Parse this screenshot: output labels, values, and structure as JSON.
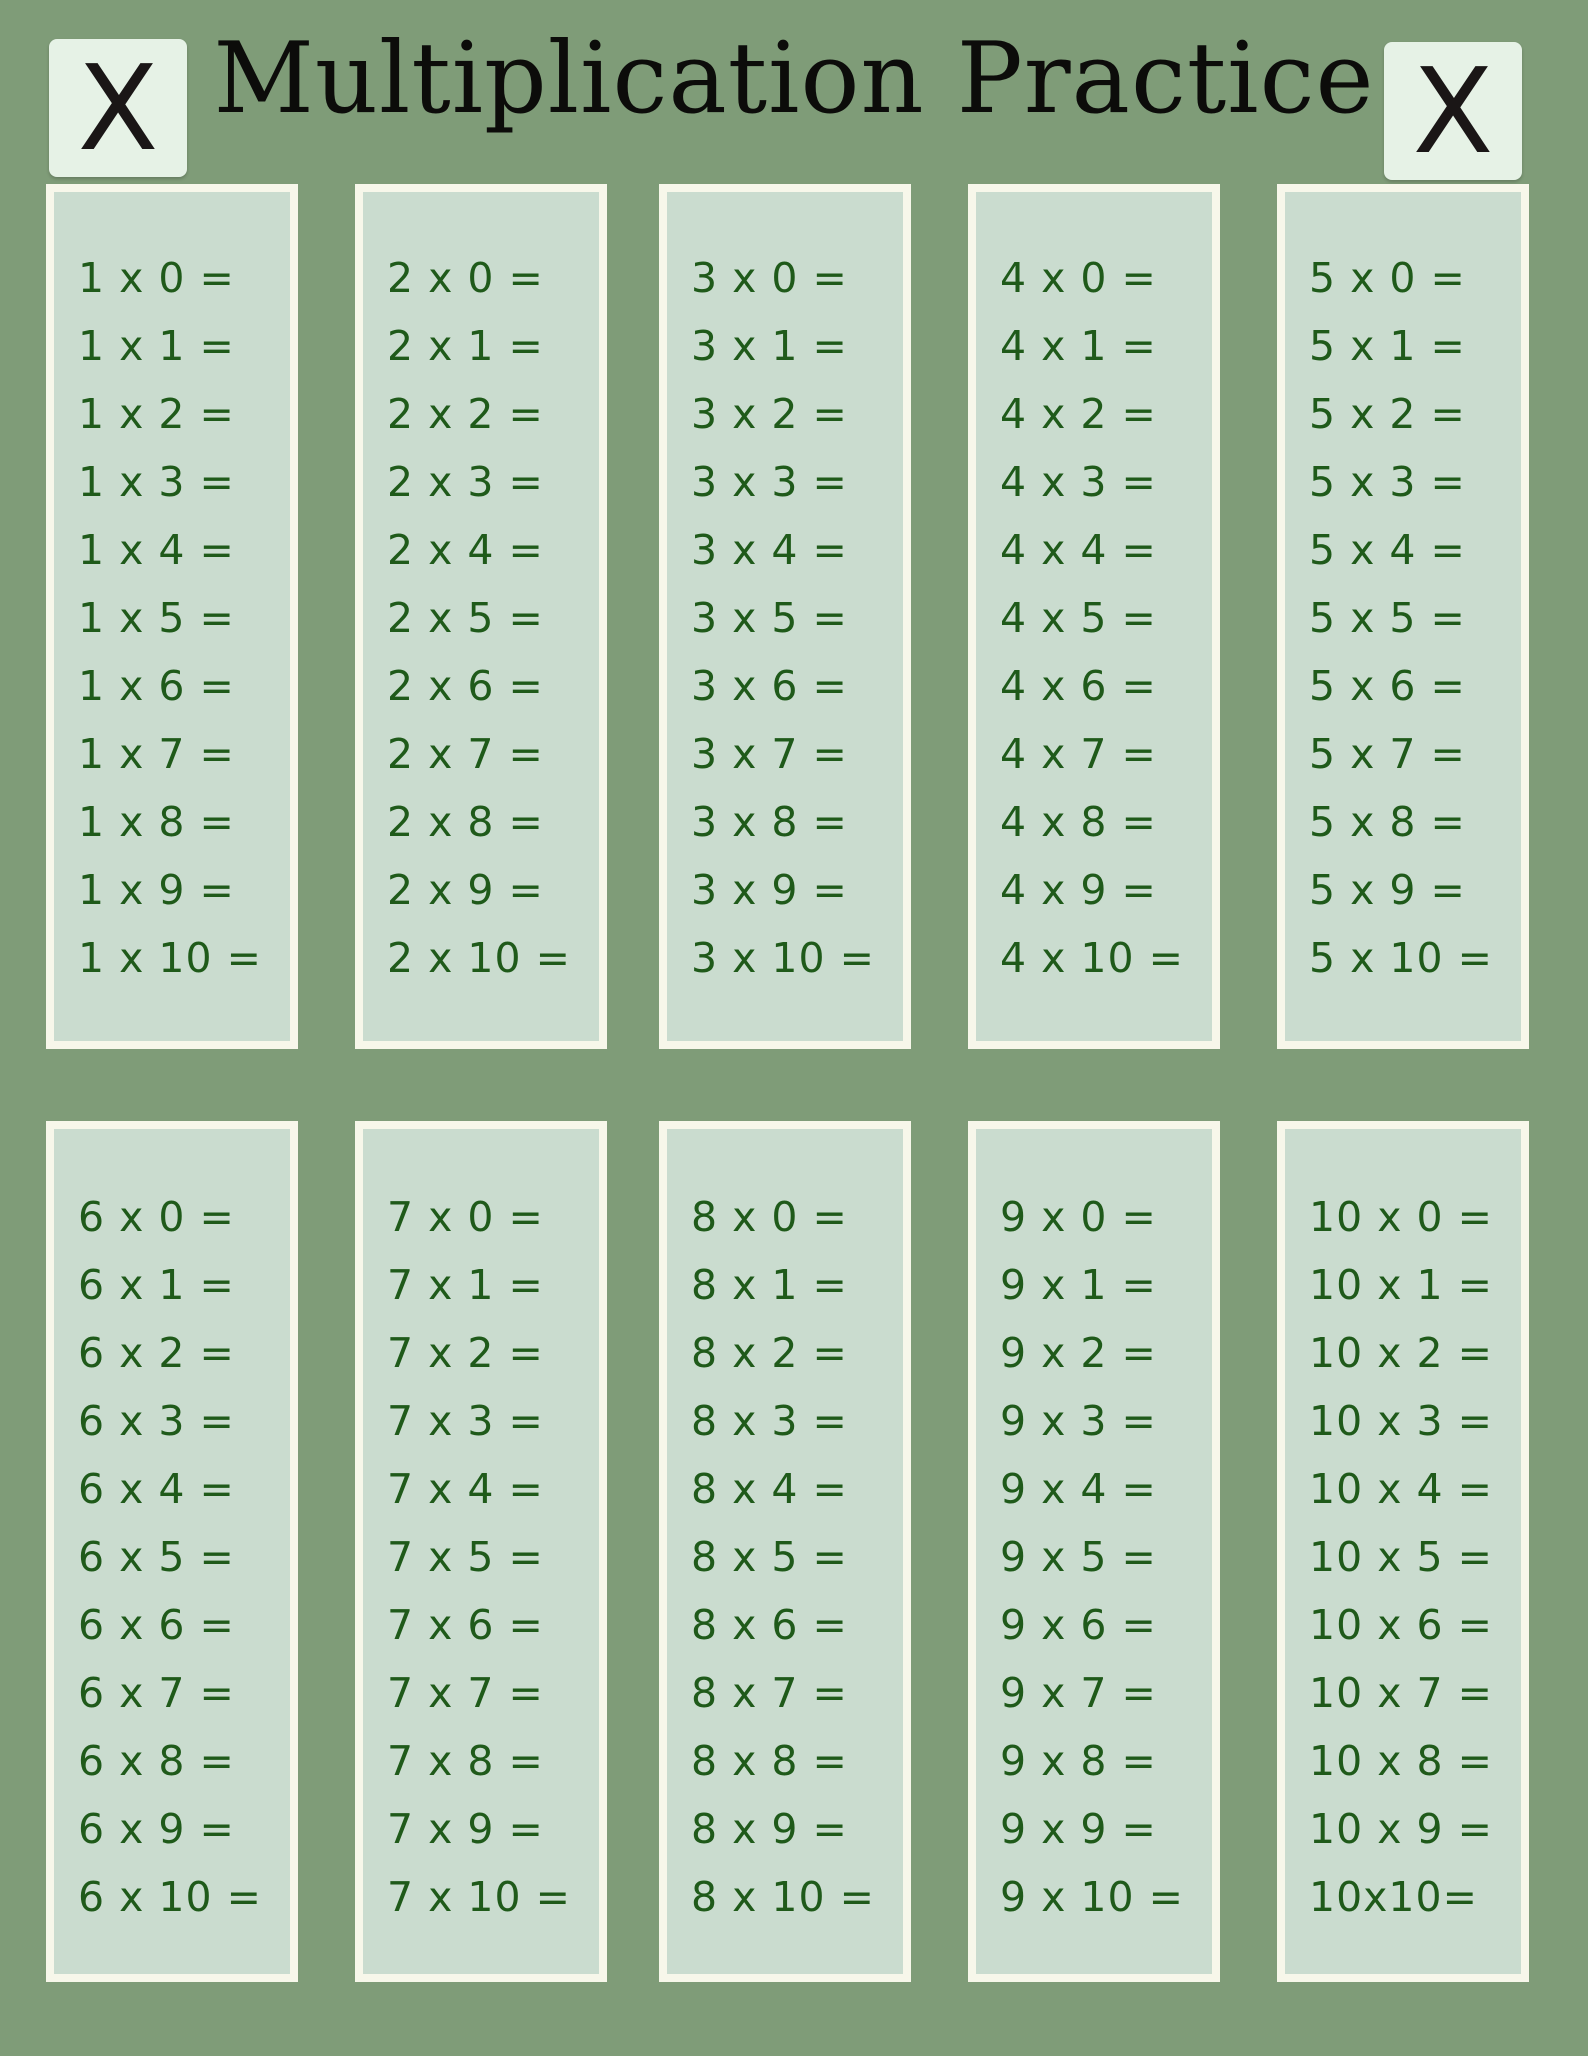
{
  "title": "Multiplication Practice",
  "tile_left": "X",
  "tile_right": "X",
  "colors": {
    "background": "#7f9c78",
    "panel": "#cadccf",
    "panel_border": "#f7f7ea",
    "text": "#1f5a1a"
  },
  "tables": [
    [
      "1 x 0 =",
      "1 x 1 =",
      "1 x 2 =",
      "1 x 3 =",
      "1 x 4 =",
      "1 x 5 =",
      "1 x 6 =",
      "1 x 7 =",
      "1 x 8 =",
      "1 x 9 =",
      "1 x 10 ="
    ],
    [
      "2 x 0 =",
      "2 x 1 =",
      "2 x 2 =",
      "2 x 3 =",
      "2 x 4 =",
      "2 x 5 =",
      "2 x 6 =",
      "2 x 7 =",
      "2 x 8 =",
      "2 x 9 =",
      "2 x 10 ="
    ],
    [
      "3 x 0 =",
      "3 x 1 =",
      "3 x 2 =",
      "3 x 3 =",
      "3 x 4 =",
      "3 x 5 =",
      "3 x 6 =",
      "3 x 7 =",
      "3 x 8 =",
      "3 x 9 =",
      "3 x 10 ="
    ],
    [
      "4 x 0 =",
      "4 x 1 =",
      "4 x 2 =",
      "4 x 3 =",
      "4 x 4 =",
      "4 x 5 =",
      "4 x 6 =",
      "4 x 7 =",
      "4 x 8 =",
      "4 x 9 =",
      "4 x 10 ="
    ],
    [
      "5 x 0 =",
      "5 x 1 =",
      "5 x 2 =",
      "5 x 3 =",
      "5 x 4 =",
      "5 x 5 =",
      "5 x 6 =",
      "5 x 7 =",
      "5 x 8 =",
      "5 x 9 =",
      "5 x 10 ="
    ],
    [
      "6 x 0 =",
      "6 x 1 =",
      "6 x 2 =",
      "6 x 3 =",
      "6 x 4 =",
      "6 x 5 =",
      "6 x 6 =",
      "6 x 7 =",
      "6 x 8 =",
      "6 x 9 =",
      "6 x 10 ="
    ],
    [
      "7 x 0 =",
      "7 x 1 =",
      "7 x 2 =",
      "7 x 3 =",
      "7 x 4 =",
      "7 x 5 =",
      "7 x 6 =",
      "7 x 7 =",
      "7 x 8 =",
      "7 x 9 =",
      "7 x 10 ="
    ],
    [
      "8 x 0 =",
      "8 x 1 =",
      "8 x 2 =",
      "8 x 3 =",
      "8 x 4 =",
      "8 x 5 =",
      "8 x 6 =",
      "8 x 7 =",
      "8 x 8 =",
      "8 x 9 =",
      "8 x 10 ="
    ],
    [
      "9 x 0 =",
      "9 x 1 =",
      "9 x 2 =",
      "9 x 3 =",
      "9 x 4 =",
      "9 x 5 =",
      "9 x 6 =",
      "9 x 7 =",
      "9 x 8 =",
      "9 x 9 =",
      "9 x 10 ="
    ],
    [
      "10 x 0 =",
      "10 x 1 =",
      "10 x 2 =",
      "10 x 3 =",
      "10 x 4 =",
      "10 x 5 =",
      "10 x 6 =",
      "10 x 7 =",
      "10 x 8 =",
      "10 x 9 =",
      "10x10="
    ]
  ]
}
